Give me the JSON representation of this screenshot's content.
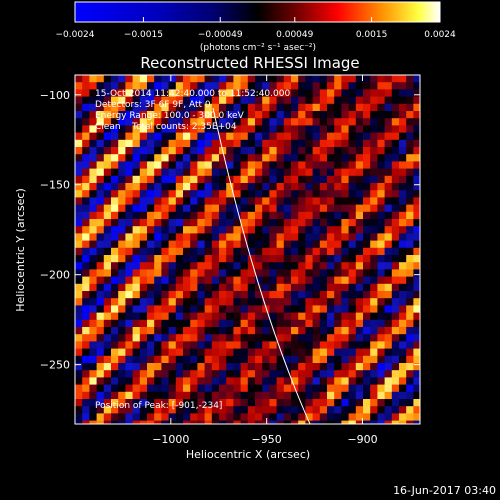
{
  "chart_data": {
    "type": "heatmap",
    "title": "Reconstructed RHESSI Image",
    "xlabel": "Heliocentric X (arcsec)",
    "ylabel": "Heliocentric Y (arcsec)",
    "xlim": [
      -1050,
      -870
    ],
    "ylim": [
      -283,
      -89
    ],
    "x_ticks": [
      -1000,
      -950,
      -900
    ],
    "x_tick_labels": [
      "−1000",
      "−950",
      "−900"
    ],
    "y_ticks": [
      -100,
      -150,
      -200,
      -250
    ],
    "y_tick_labels": [
      "−100",
      "−150",
      "−200",
      "−250"
    ],
    "colorbar": {
      "colormap": "hot-cold (blue-black-red-yellow-white)",
      "ticks": [
        -0.0024,
        -0.0015,
        -0.00049,
        0.00049,
        0.0015,
        0.0024
      ],
      "tick_labels": [
        "−0.0024",
        "−0.0015",
        "−0.00049",
        "0.00049",
        "0.0015",
        "0.0024"
      ],
      "unit_label": "(photons cm⁻² s⁻¹ asec⁻²)"
    },
    "annotations": [
      "15-Oct-2014 11:42:40.000 to 11:52:40.000",
      "Detectors: 3F 6F 9F, Att 0",
      "Energy Range: 100.0 - 300.0 keV",
      "Clean    Total counts: 2.35E+04"
    ],
    "peak_label": "Position of Peak: [-901,-234]",
    "peak_position": [
      -901,
      -234
    ],
    "limb_line": true,
    "grid": false
  },
  "footer": {
    "timestamp": "16-Jun-2017 03:40"
  }
}
